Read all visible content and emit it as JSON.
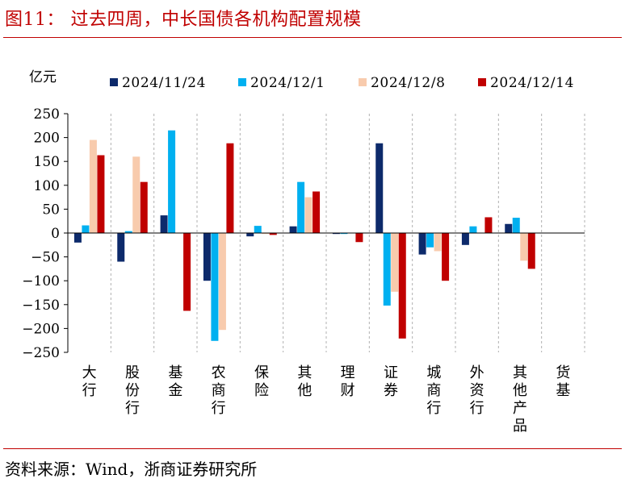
{
  "figure": {
    "title": "图11：  过去四周，中长国债各机构配置规模",
    "source": "资料来源：Wind，浙商证券研究所"
  },
  "colors": {
    "rule": "#c00000",
    "series": [
      "#0d2a6b",
      "#00b0f0",
      "#f8cbad",
      "#c00000"
    ],
    "grid": "#b0b0b0"
  },
  "chart_data": {
    "type": "bar",
    "unit_label": "亿元",
    "categories": [
      "大行",
      "股份行",
      "基金",
      "农商行",
      "保险",
      "其他",
      "理财",
      "证券",
      "城商行",
      "外资行",
      "其他产品",
      "货基"
    ],
    "series": [
      {
        "name": "2024/11/24",
        "values": [
          -20,
          -60,
          37,
          -100,
          -7,
          14,
          -2,
          188,
          -45,
          -25,
          19,
          0
        ]
      },
      {
        "name": "2024/12/1",
        "values": [
          16,
          4,
          215,
          -226,
          15,
          107,
          -2,
          -152,
          -30,
          14,
          32,
          0
        ]
      },
      {
        "name": "2024/12/8",
        "values": [
          195,
          160,
          0,
          -203,
          -2,
          75,
          0,
          -123,
          -38,
          0,
          -58,
          0
        ]
      },
      {
        "name": "2024/12/14",
        "values": [
          163,
          107,
          -163,
          188,
          -4,
          87,
          -19,
          -221,
          -100,
          33,
          -75,
          0
        ]
      }
    ],
    "ylim": [
      -250,
      250
    ],
    "yticks": [
      250,
      200,
      150,
      100,
      50,
      0,
      -50,
      -100,
      -150,
      -200,
      -250
    ],
    "grid": "vertical-dashed",
    "legend_position": "top"
  }
}
